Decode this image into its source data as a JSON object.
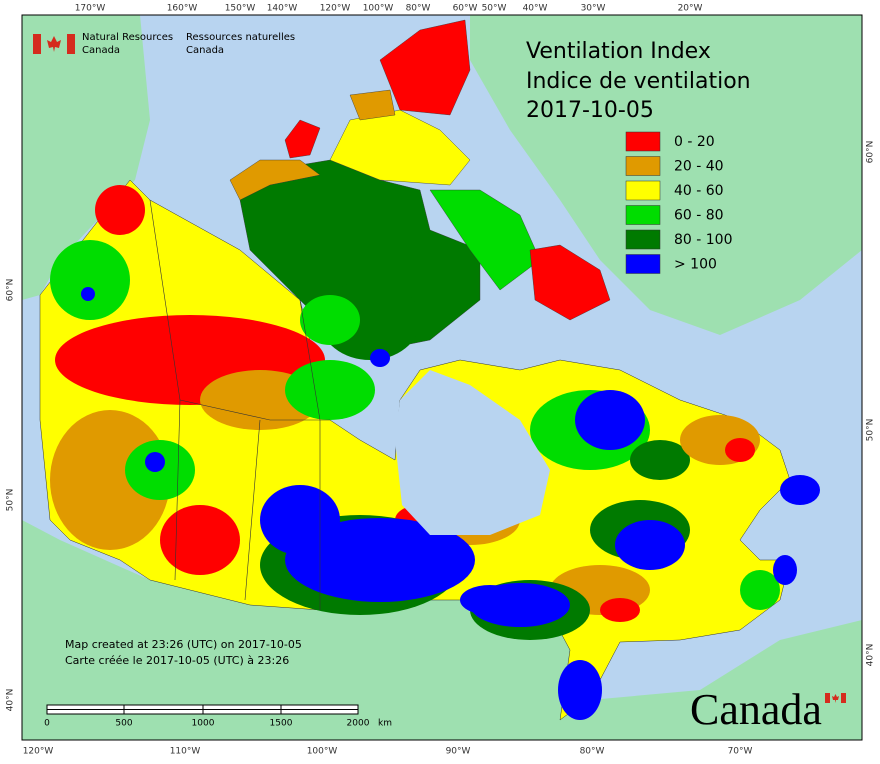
{
  "header": {
    "department_en": [
      "Natural Resources",
      "Canada"
    ],
    "department_fr": [
      "Ressources naturelles",
      "Canada"
    ]
  },
  "title": [
    "Ventilation Index",
    "Indice de ventilation",
    "2017-10-05"
  ],
  "legend": [
    {
      "label": "0 - 20",
      "color": "#ff0000"
    },
    {
      "label": "20 - 40",
      "color": "#e09a00"
    },
    {
      "label": "40 - 60",
      "color": "#ffff00"
    },
    {
      "label": "60 - 80",
      "color": "#00dd00"
    },
    {
      "label": "80 - 100",
      "color": "#007a00"
    },
    {
      "label": "> 100",
      "color": "#0000ff"
    }
  ],
  "notes": [
    "Map created at 23:26 (UTC) on 2017-10-05",
    "Carte créée le 2017-10-05 (UTC) à 23:26"
  ],
  "scale_bar": {
    "labels": [
      "0",
      "500",
      "1000",
      "1500",
      "2000"
    ],
    "unit": "km"
  },
  "graticule": {
    "top": [
      "170°W",
      "160°W",
      "150°W",
      "140°W",
      "120°W",
      "100°W",
      "80°W",
      "60°W",
      "50°W",
      "40°W",
      "30°W",
      "20°W"
    ],
    "bottom": [
      "120°W",
      "110°W",
      "100°W",
      "90°W",
      "80°W",
      "70°W"
    ],
    "left": [
      "60°N",
      "50°N",
      "40°N"
    ],
    "right": [
      "60°N",
      "50°N",
      "40°N"
    ]
  },
  "wordmark": "Canada"
}
